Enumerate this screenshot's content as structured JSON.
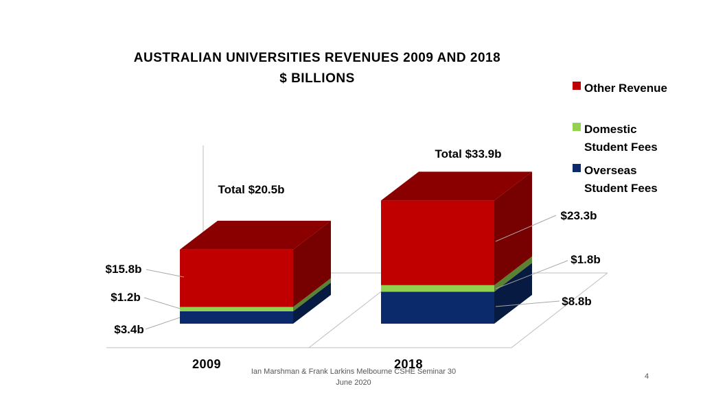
{
  "chart_data": {
    "type": "bar",
    "stacked": true,
    "three_d": true,
    "title": "AUSTRALIAN UNIVERSITIES REVENUES 2009 AND 2018",
    "subtitle": "$ BILLIONS",
    "categories": [
      "2009",
      "2018"
    ],
    "series": [
      {
        "name": "Overseas Student Fees",
        "values": [
          3.4,
          8.8
        ],
        "labels": [
          "$3.4b",
          "$8.8b"
        ],
        "color": "#0b2a6b"
      },
      {
        "name": "Domestic Student Fees",
        "values": [
          1.2,
          1.8
        ],
        "labels": [
          "$1.2b",
          "$1.8b"
        ],
        "color": "#92d050"
      },
      {
        "name": "Other Revenue",
        "values": [
          15.8,
          23.3
        ],
        "labels": [
          "$15.8b",
          "$23.3b"
        ],
        "color": "#c00000"
      }
    ],
    "totals": [
      "Total $20.5b",
      "Total $33.9b"
    ],
    "legend": {
      "position": "right",
      "items": [
        {
          "lines": [
            "Other Revenue"
          ],
          "color": "#c00000"
        },
        {
          "lines": [
            "Domestic",
            "Student Fees"
          ],
          "color": "#92d050"
        },
        {
          "lines": [
            "Overseas",
            "Student Fees"
          ],
          "color": "#0b2a6b"
        }
      ]
    },
    "ylim": [
      0,
      34
    ],
    "grid": false
  },
  "footer": {
    "line1": "Ian Marshman & Frank Larkins Melbourne CSHE Seminar 30",
    "line2": "June 2020"
  },
  "page_number": "4"
}
